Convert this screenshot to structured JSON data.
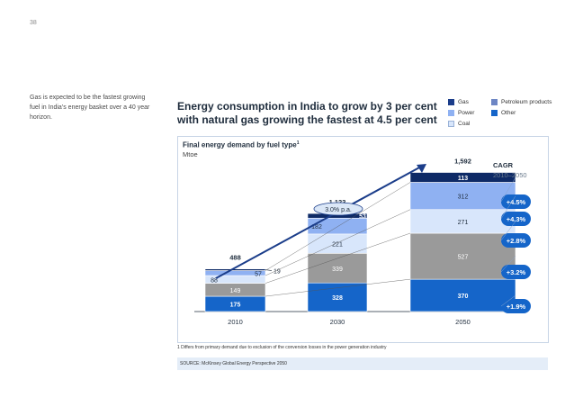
{
  "page": {
    "number": "38",
    "sidebar_note": "Gas is expected to be the fastest growing fuel in India’s energy basket over a 40 year horizon.",
    "title": "Energy consumption in India to grow by 3 per cent with natural gas growing the fastest at 4.5 per cent",
    "footnote": "1 Differs from primary demand due to exclusion of the conversion losses in the power generation industry",
    "source": "SOURCE: McKinsey Global Energy Perspective 2050"
  },
  "legend": [
    {
      "label": "Gas",
      "color": "#1b3d8a"
    },
    {
      "label": "Petroleum products",
      "color": "#6d86c4"
    },
    {
      "label": "Power",
      "color": "#8fb1f2"
    },
    {
      "label": "Other",
      "color": "#1565c9"
    },
    {
      "label": "Coal",
      "color": "#d8e6fb"
    }
  ],
  "chart_data": {
    "type": "bar",
    "stacked": true,
    "title": "Final energy demand by fuel type",
    "title_footnote": "1",
    "unit": "Mtoe",
    "categories": [
      "2010",
      "2030",
      "2050"
    ],
    "series": [
      {
        "name": "Other",
        "color": "#1565c9",
        "values": [
          175,
          328,
          370
        ]
      },
      {
        "name": "Petroleum products",
        "color": "#9a9a9a",
        "values": [
          149,
          339,
          527
        ]
      },
      {
        "name": "Coal",
        "color": "#d8e6fb",
        "values": [
          88,
          221,
          271
        ]
      },
      {
        "name": "Power",
        "color": "#8fb1f2",
        "values": [
          57,
          182,
          312
        ]
      },
      {
        "name": "Gas",
        "color": "#0e2a66",
        "values": [
          19,
          53,
          113
        ]
      }
    ],
    "totals": [
      "488",
      "1,123",
      "1,592"
    ],
    "growth_label": "3.0% p.a.",
    "cagr_title": "CAGR",
    "cagr_period": "2010–2050",
    "cagr": [
      "+4.5%",
      "+4.3%",
      "+2.8%",
      "+3.2%",
      "+1.9%"
    ],
    "ylim": [
      0,
      1650
    ]
  }
}
